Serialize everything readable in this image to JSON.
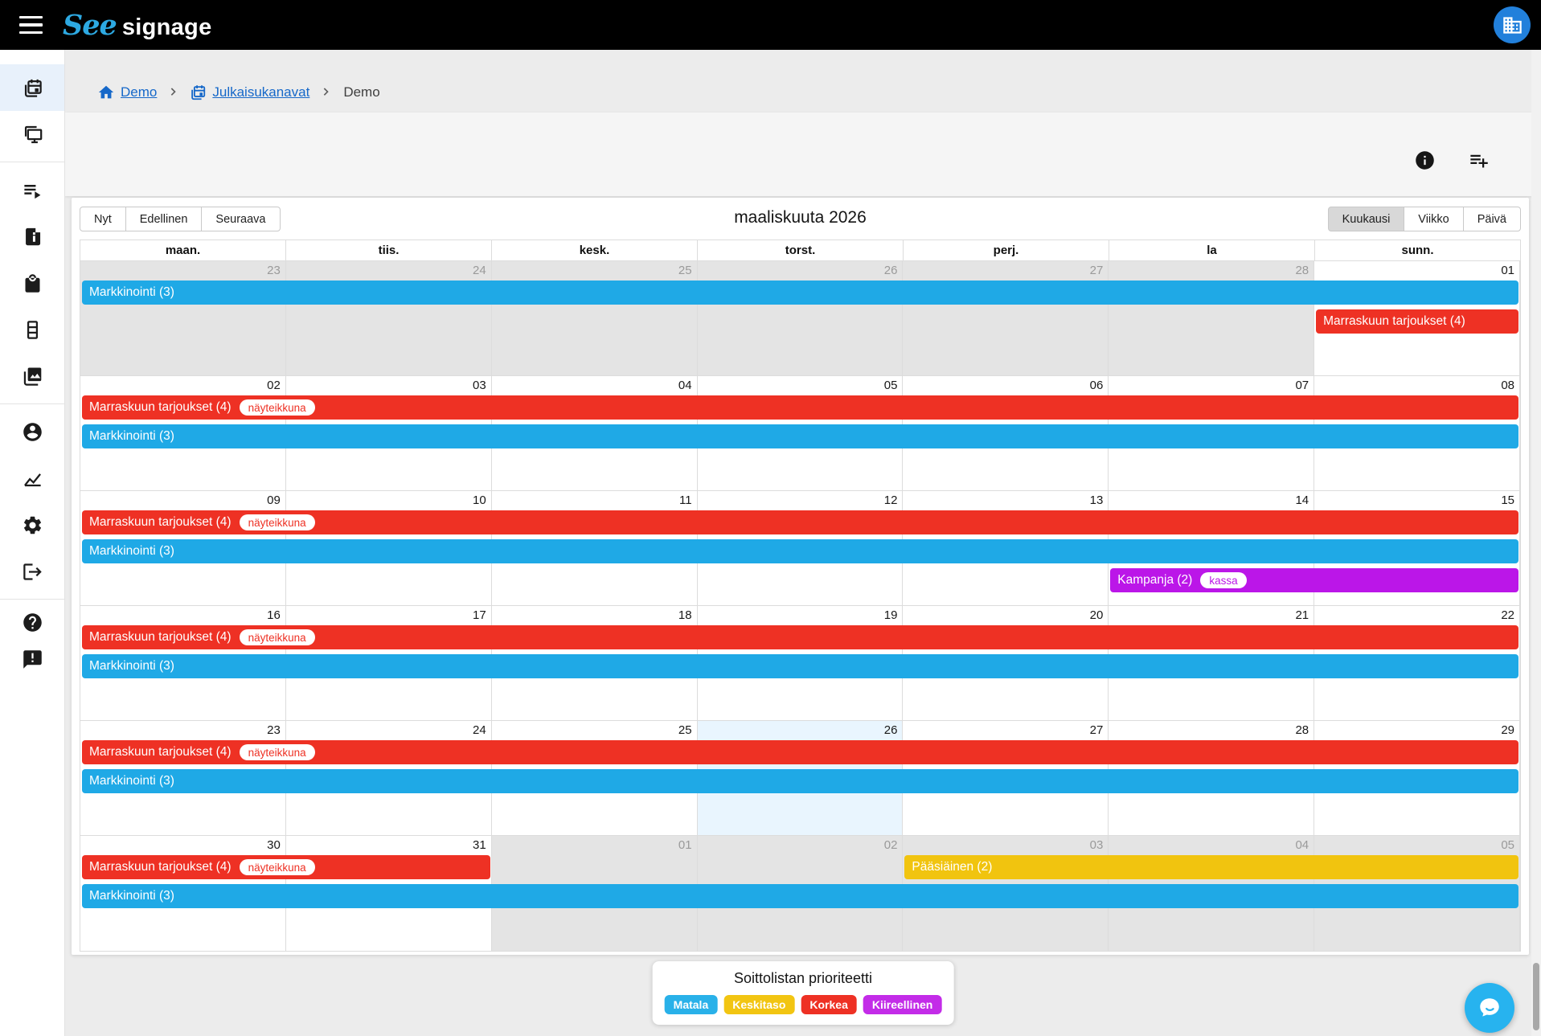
{
  "header": {
    "brand_script": "See",
    "brand_rest": "signage"
  },
  "breadcrumb": {
    "home_label": "Demo",
    "channels_label": "Julkaisukanavat",
    "current_label": "Demo"
  },
  "toolbar_icons": [
    "info-icon",
    "playlist-add-icon"
  ],
  "sidebar": {
    "active": "publish-calendar",
    "groups": [
      [
        "publish-calendar",
        "displays"
      ],
      [
        "playlists",
        "campaigns",
        "shop",
        "table-rows",
        "media-library"
      ],
      [
        "account",
        "statistics",
        "settings",
        "logout"
      ],
      [
        "help",
        "feedback"
      ]
    ]
  },
  "calendar": {
    "nav_now": "Nyt",
    "nav_prev": "Edellinen",
    "nav_next": "Seuraava",
    "title": "maaliskuuta 2026",
    "view_month": "Kuukausi",
    "view_week": "Viikko",
    "view_day": "Päivä",
    "active_view": "Kuukausi",
    "day_headers": [
      "maan.",
      "tiis.",
      "kesk.",
      "torst.",
      "perj.",
      "la",
      "sunn."
    ],
    "weeks": [
      {
        "days": [
          {
            "num": "23",
            "out": true
          },
          {
            "num": "24",
            "out": true
          },
          {
            "num": "25",
            "out": true
          },
          {
            "num": "26",
            "out": true
          },
          {
            "num": "27",
            "out": true
          },
          {
            "num": "28",
            "out": true
          },
          {
            "num": "01"
          }
        ],
        "events": [
          {
            "label": "Markkinointi (3)",
            "color": "blue",
            "start": 0,
            "span": 7,
            "line": 0
          },
          {
            "label": "Marraskuun tarjoukset (4)",
            "color": "red",
            "start": 6,
            "span": 1,
            "line": 1
          }
        ]
      },
      {
        "days": [
          {
            "num": "02"
          },
          {
            "num": "03"
          },
          {
            "num": "04"
          },
          {
            "num": "05"
          },
          {
            "num": "06"
          },
          {
            "num": "07"
          },
          {
            "num": "08"
          }
        ],
        "events": [
          {
            "label": "Marraskuun tarjoukset (4)",
            "badge": "näyteikkuna",
            "color": "red",
            "start": 0,
            "span": 7,
            "line": 0
          },
          {
            "label": "Markkinointi (3)",
            "color": "blue",
            "start": 0,
            "span": 7,
            "line": 1
          }
        ]
      },
      {
        "days": [
          {
            "num": "09"
          },
          {
            "num": "10"
          },
          {
            "num": "11"
          },
          {
            "num": "12"
          },
          {
            "num": "13"
          },
          {
            "num": "14"
          },
          {
            "num": "15"
          }
        ],
        "events": [
          {
            "label": "Marraskuun tarjoukset (4)",
            "badge": "näyteikkuna",
            "color": "red",
            "start": 0,
            "span": 7,
            "line": 0
          },
          {
            "label": "Markkinointi (3)",
            "color": "blue",
            "start": 0,
            "span": 7,
            "line": 1
          },
          {
            "label": "Kampanja (2)",
            "badge": "kassa",
            "color": "purple",
            "start": 5,
            "span": 2,
            "line": 2
          }
        ]
      },
      {
        "days": [
          {
            "num": "16"
          },
          {
            "num": "17"
          },
          {
            "num": "18"
          },
          {
            "num": "19"
          },
          {
            "num": "20"
          },
          {
            "num": "21"
          },
          {
            "num": "22"
          }
        ],
        "events": [
          {
            "label": "Marraskuun tarjoukset (4)",
            "badge": "näyteikkuna",
            "color": "red",
            "start": 0,
            "span": 7,
            "line": 0
          },
          {
            "label": "Markkinointi (3)",
            "color": "blue",
            "start": 0,
            "span": 7,
            "line": 1
          }
        ]
      },
      {
        "days": [
          {
            "num": "23"
          },
          {
            "num": "24"
          },
          {
            "num": "25"
          },
          {
            "num": "26",
            "today": true
          },
          {
            "num": "27"
          },
          {
            "num": "28"
          },
          {
            "num": "29"
          }
        ],
        "events": [
          {
            "label": "Marraskuun tarjoukset (4)",
            "badge": "näyteikkuna",
            "color": "red",
            "start": 0,
            "span": 7,
            "line": 0
          },
          {
            "label": "Markkinointi (3)",
            "color": "blue",
            "start": 0,
            "span": 7,
            "line": 1
          }
        ]
      },
      {
        "days": [
          {
            "num": "30"
          },
          {
            "num": "31"
          },
          {
            "num": "01",
            "out": true
          },
          {
            "num": "02",
            "out": true
          },
          {
            "num": "03",
            "out": true
          },
          {
            "num": "04",
            "out": true
          },
          {
            "num": "05",
            "out": true
          }
        ],
        "events": [
          {
            "label": "Marraskuun tarjoukset (4)",
            "badge": "näyteikkuna",
            "color": "red",
            "start": 0,
            "span": 2,
            "line": 0
          },
          {
            "label": "Pääsiäinen (2)",
            "color": "yellow",
            "start": 4,
            "span": 3,
            "line": 0
          },
          {
            "label": "Markkinointi (3)",
            "color": "blue",
            "start": 0,
            "span": 7,
            "line": 1
          }
        ]
      }
    ]
  },
  "colors": {
    "blue": "#1fa9e6",
    "red": "#ee3124",
    "yellow": "#f1c40f",
    "purple": "#bb16e8"
  },
  "legend": {
    "title": "Soittolistan prioriteetti",
    "items": [
      {
        "label": "Matala",
        "color": "#29b1e9"
      },
      {
        "label": "Keskitaso",
        "color": "#f2c512"
      },
      {
        "label": "Korkea",
        "color": "#ee3124"
      },
      {
        "label": "Kiireellinen",
        "color": "#c32ce8"
      }
    ]
  }
}
